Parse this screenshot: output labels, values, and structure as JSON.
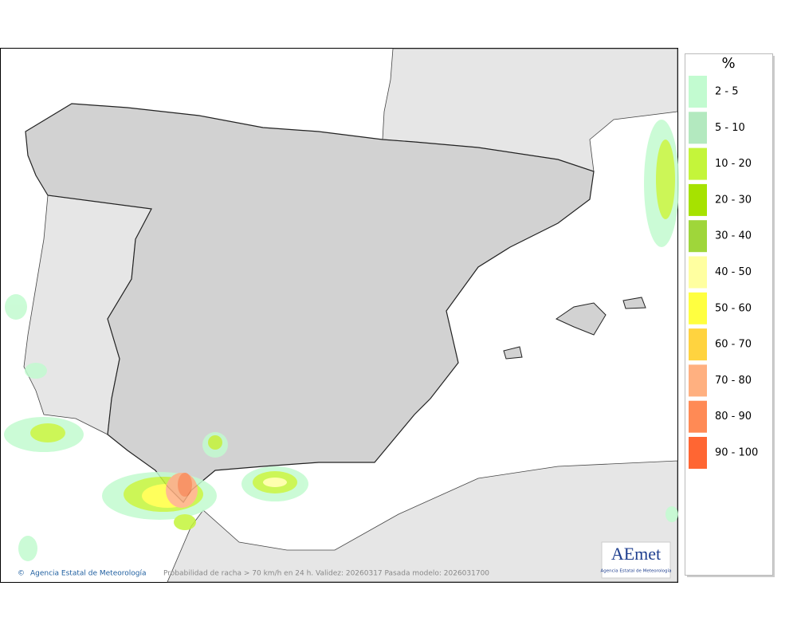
{
  "legend": {
    "title": "%",
    "items": [
      {
        "label": "2 - 5",
        "color": "#c2fbd0"
      },
      {
        "label": "5 - 10",
        "color": "#b3e9bf"
      },
      {
        "label": "10 - 20",
        "color": "#c4f53a"
      },
      {
        "label": "20 - 30",
        "color": "#a6e200"
      },
      {
        "label": "30 - 40",
        "color": "#9fd63a"
      },
      {
        "label": "40 - 50",
        "color": "#ffffa0"
      },
      {
        "label": "50 - 60",
        "color": "#ffff40"
      },
      {
        "label": "60 - 70",
        "color": "#ffd33f"
      },
      {
        "label": "70 - 80",
        "color": "#ffb080"
      },
      {
        "label": "80 - 90",
        "color": "#ff8a55"
      },
      {
        "label": "90 - 100",
        "color": "#ff6633"
      }
    ]
  },
  "map": {
    "credit": "Agencia Estatal de Meteorología",
    "caption": "Probabilidad de racha > 70 km/h en 24 h. Validez: 20260317 Pasada modelo: 2026031700",
    "logo": "AEmet",
    "logo_sub": "Agencia Estatal de Meteorología"
  }
}
